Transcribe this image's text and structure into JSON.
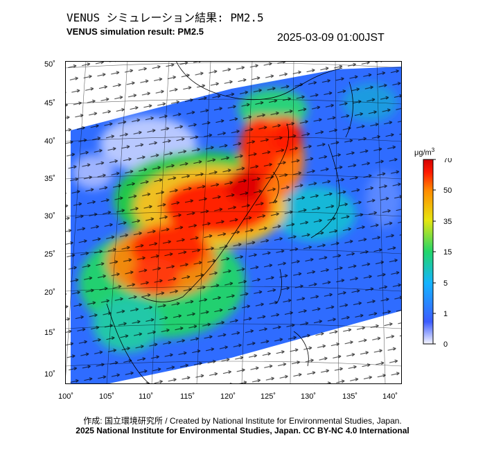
{
  "header": {
    "title_jp": "VENUS シミュレーション結果: PM2.5",
    "title_en": "VENUS simulation result: PM2.5",
    "timestamp": "2025-03-09 01:00JST"
  },
  "map": {
    "lat_labels": [
      "50˚",
      "45˚",
      "40˚",
      "35˚",
      "30˚",
      "25˚",
      "20˚",
      "15˚",
      "10˚"
    ],
    "lon_labels": [
      "100˚",
      "105˚",
      "110˚",
      "115˚",
      "120˚",
      "125˚",
      "130˚",
      "135˚",
      "140˚"
    ]
  },
  "colorbar": {
    "unit_prefix": "μg/m",
    "unit_exp": "3",
    "ticks": [
      "70",
      "50",
      "35",
      "15",
      "5",
      "1",
      "0"
    ],
    "colors": [
      "#f5f5ff",
      "#3c5cff",
      "#14b4ff",
      "#22d66a",
      "#e6e610",
      "#ff8c00",
      "#ff1a00",
      "#d40000"
    ]
  },
  "footer": {
    "credit": "作成: 国立環境研究所 / Created by National Institute for Environmental Studies, Japan.",
    "copyright": "2025 National Institute for Environmental Studies, Japan. CC BY-NC 4.0 International"
  }
}
